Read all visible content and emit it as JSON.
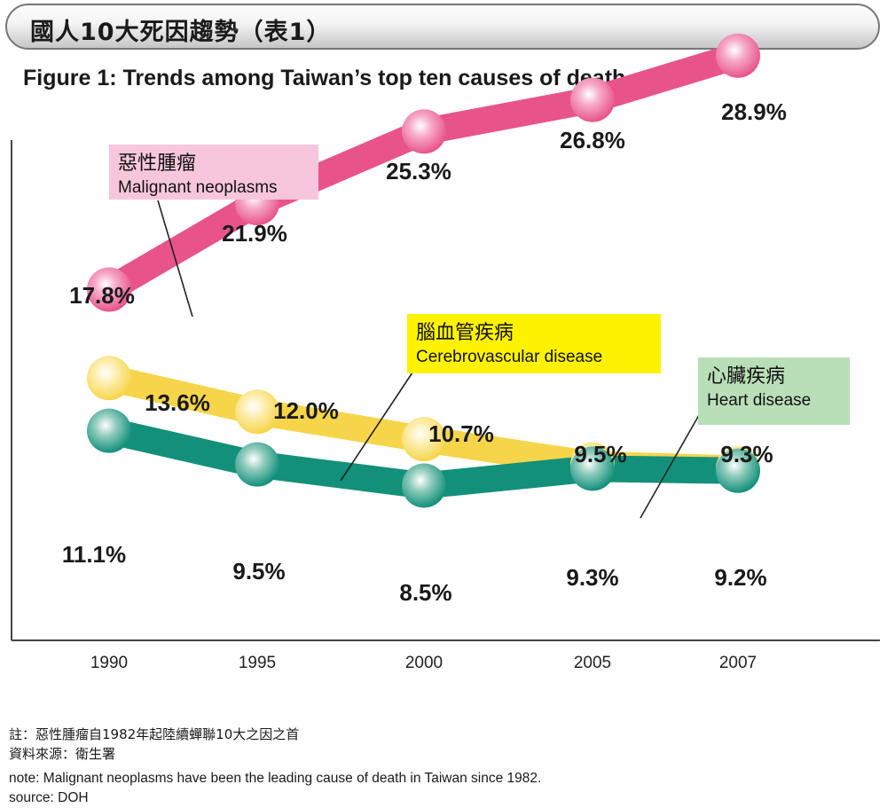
{
  "header": {
    "title": "國人10大死因趨勢（表1）",
    "subtitle": "Figure 1: Trends among Taiwan’s top ten causes of death"
  },
  "chart_data": {
    "type": "line",
    "x": [
      "1990",
      "1995",
      "2000",
      "2005",
      "2007"
    ],
    "series": [
      {
        "name": "Malignant neoplasms",
        "name_zh": "惡性腫瘤",
        "values": [
          17.8,
          21.9,
          25.3,
          26.8,
          28.9
        ],
        "labels": [
          "17.8%",
          "21.9%",
          "25.3%",
          "26.8%",
          "28.9%"
        ],
        "color": "#e8548a",
        "marker_color": "#f6a9c7",
        "legend_bg": "#f7c6dd"
      },
      {
        "name": "Cerebrovascular disease",
        "name_zh": "腦血管疾病",
        "values": [
          13.6,
          12.0,
          10.7,
          9.5,
          9.3
        ],
        "labels": [
          "13.6%",
          "12.0%",
          "10.7%",
          "9.5%",
          "9.3%"
        ],
        "color": "#f6d54a",
        "marker_color": "#fdeeb0",
        "legend_bg": "#fff200"
      },
      {
        "name": "Heart disease",
        "name_zh": "心臟疾病",
        "values": [
          11.1,
          9.5,
          8.5,
          9.3,
          9.2
        ],
        "labels": [
          "11.1%",
          "9.5%",
          "8.5%",
          "9.3%",
          "9.2%"
        ],
        "color": "#12907a",
        "marker_color": "#8fcbbd",
        "legend_bg": "#b9dfb8"
      }
    ],
    "grid": false
  },
  "footnotes": {
    "zh_note": "註：惡性腫瘤自1982年起陸續蟬聯10大之因之首",
    "zh_source": "資料來源：衛生署",
    "en_note": "note: Malignant neoplasms have been the leading cause of death in Taiwan since 1982.",
    "en_source": "source: DOH"
  }
}
